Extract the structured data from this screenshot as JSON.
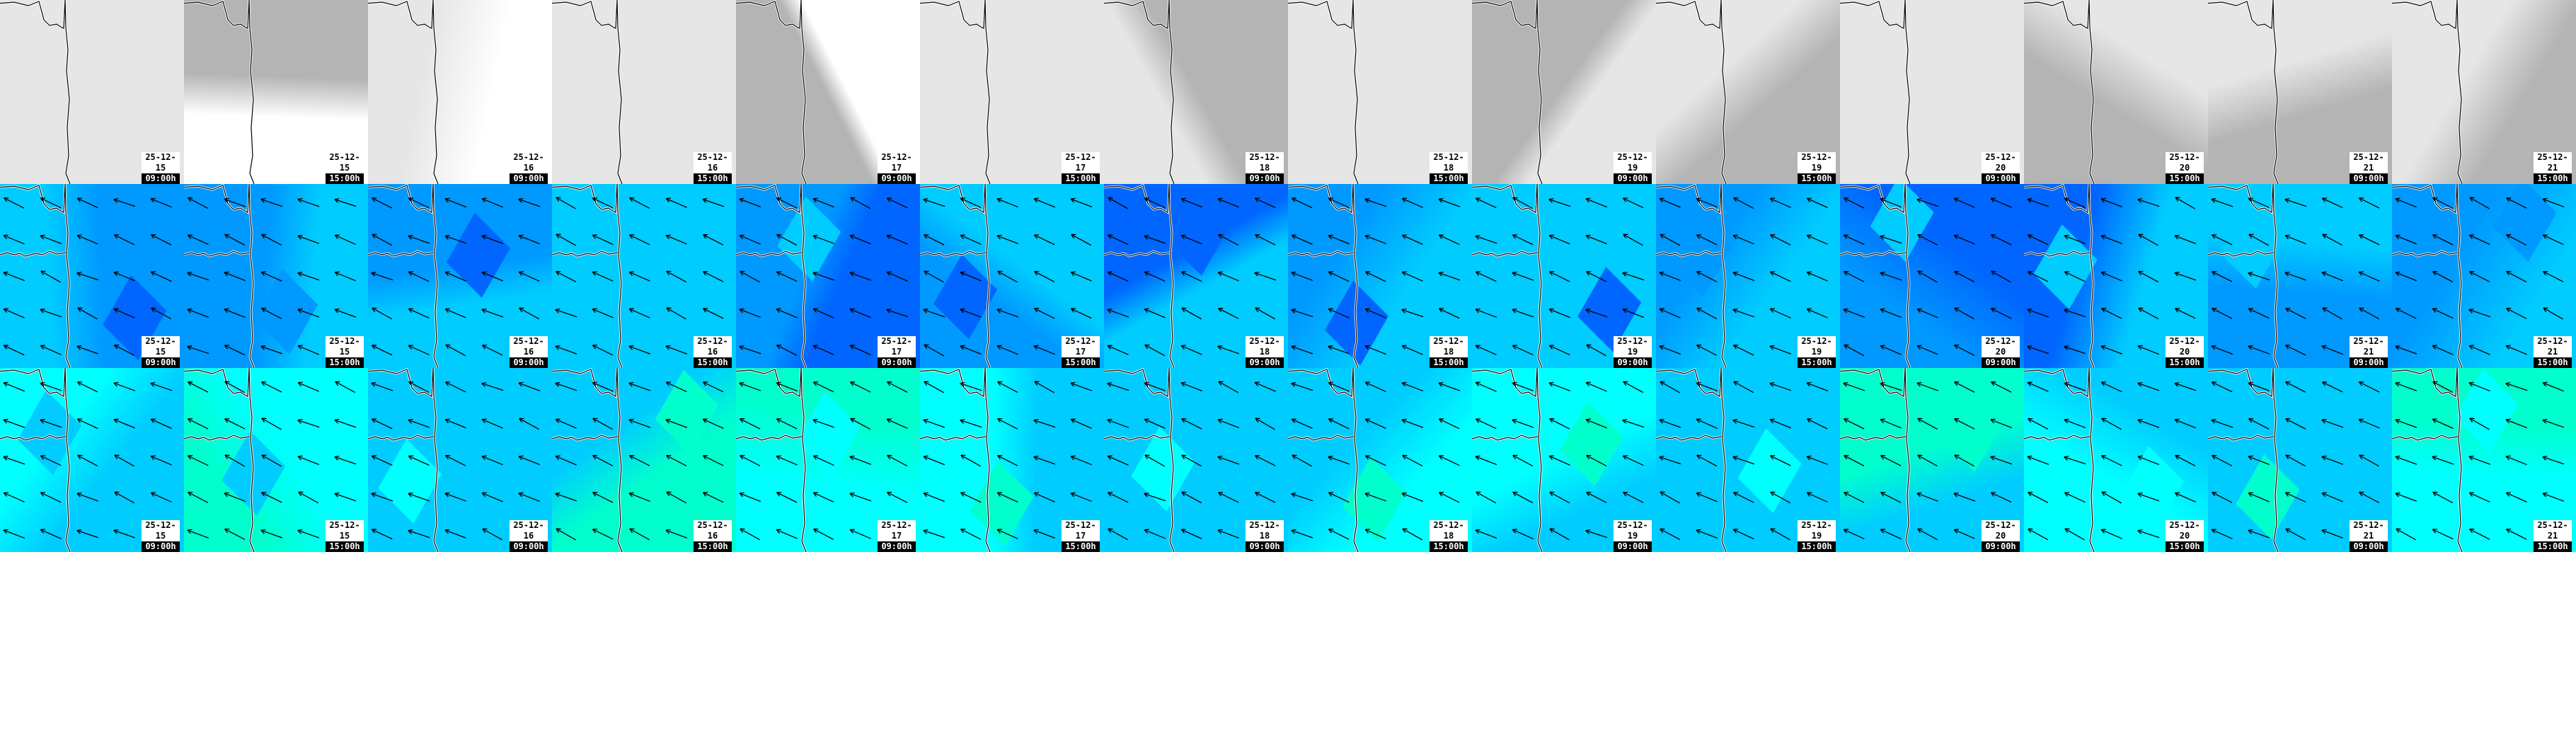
{
  "rows": [
    {
      "layer": "grayscale",
      "colors": [
        "#b4b4b4",
        "#e6e6e6",
        "#ffffff"
      ],
      "arrows": false
    },
    {
      "layer": "blue",
      "colors": [
        "#0099ff",
        "#00ccff",
        "#0066ff"
      ],
      "arrows": true
    },
    {
      "layer": "cyan",
      "colors": [
        "#00ffff",
        "#00ccff",
        "#00ffcc"
      ],
      "arrows": true
    }
  ],
  "frames": [
    {
      "date": "25-12-15",
      "time": "09:00h"
    },
    {
      "date": "25-12-15",
      "time": "15:00h"
    },
    {
      "date": "25-12-16",
      "time": "09:00h"
    },
    {
      "date": "25-12-16",
      "time": "15:00h"
    },
    {
      "date": "25-12-17",
      "time": "09:00h"
    },
    {
      "date": "25-12-17",
      "time": "15:00h"
    },
    {
      "date": "25-12-18",
      "time": "09:00h"
    },
    {
      "date": "25-12-18",
      "time": "15:00h"
    },
    {
      "date": "25-12-19",
      "time": "09:00h"
    },
    {
      "date": "25-12-19",
      "time": "15:00h"
    },
    {
      "date": "25-12-20",
      "time": "09:00h"
    },
    {
      "date": "25-12-20",
      "time": "15:00h"
    },
    {
      "date": "25-12-21",
      "time": "09:00h"
    },
    {
      "date": "25-12-21",
      "time": "15:00h"
    }
  ],
  "wind_direction": "west-northwest",
  "coastline_color": "#000000"
}
